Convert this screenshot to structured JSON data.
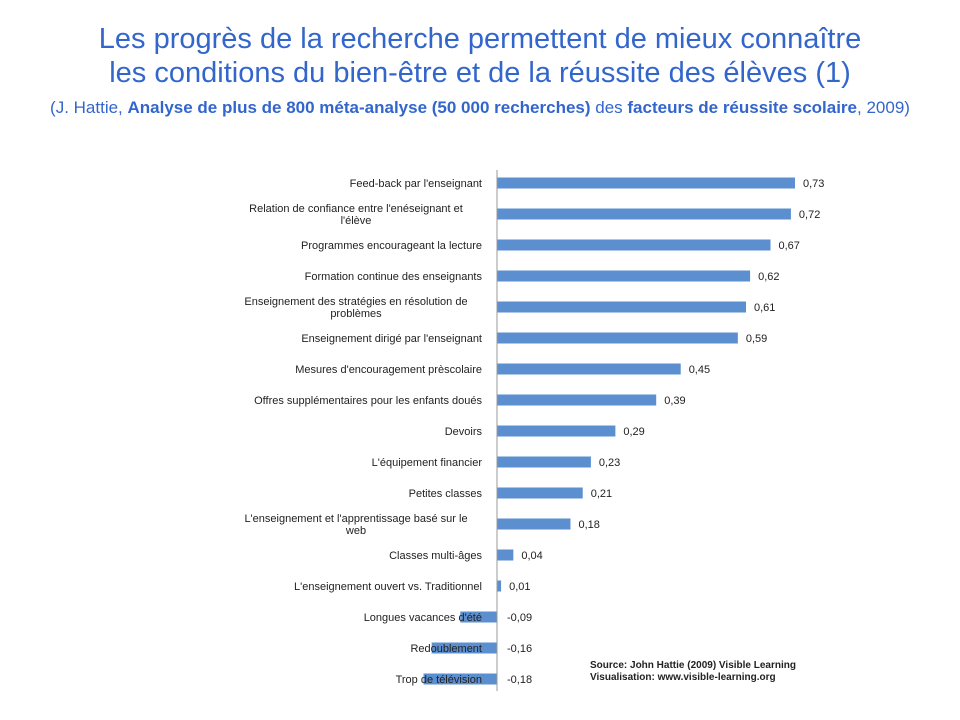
{
  "header": {
    "title_line1": "Les progrès de la recherche permettent de mieux connaître",
    "title_line2": "les conditions du bien-être et de la réussite des élèves (1)",
    "subtitle_part1": "(J. Hattie, ",
    "subtitle_bold1": "Analyse de plus de 800 méta-analyse (50 000 recherches)",
    "subtitle_part2": " des ",
    "subtitle_bold2": "facteurs de réussite scolaire",
    "subtitle_part3": ", 2009)"
  },
  "chart_data": {
    "type": "bar",
    "orientation": "horizontal",
    "color": "#5b8fd0",
    "categories": [
      "Feed-back par l'enseignant",
      "Relation de confiance entre l'enéseignant et l'élève",
      "Programmes encourageant la lecture",
      "Formation continue des enseignants",
      "Enseignement des stratégies en résolution de problèmes",
      "Enseignement dirigé par l'enseignant",
      "Mesures d'encouragement prèscolaire",
      "Offres supplémentaires pour les enfants doués",
      "Devoirs",
      "L'équipement financier",
      "Petites classes",
      "L'enseignement et l'apprentissage basé sur le web",
      "Classes multi-âges",
      "L'enseignement ouvert vs. Traditionnel",
      "Longues vacances d'été",
      "Redoublement",
      "Trop de télévision"
    ],
    "values": [
      0.73,
      0.72,
      0.67,
      0.62,
      0.61,
      0.59,
      0.45,
      0.39,
      0.29,
      0.23,
      0.21,
      0.18,
      0.04,
      0.01,
      -0.09,
      -0.16,
      -0.18
    ],
    "labels": [
      "0,73",
      "0,72",
      "0,67",
      "0,62",
      "0,61",
      "0,59",
      "0,45",
      "0,39",
      "0,29",
      "0,23",
      "0,21",
      "0,18",
      "0,04",
      "0,01",
      "-0,09",
      "-0,16",
      "-0,18"
    ],
    "xlim": [
      -0.18,
      0.73
    ]
  },
  "source": {
    "line1": "Source: John Hattie (2009) Visible Learning",
    "line2": "Visualisation: www.visible-learning.org"
  }
}
